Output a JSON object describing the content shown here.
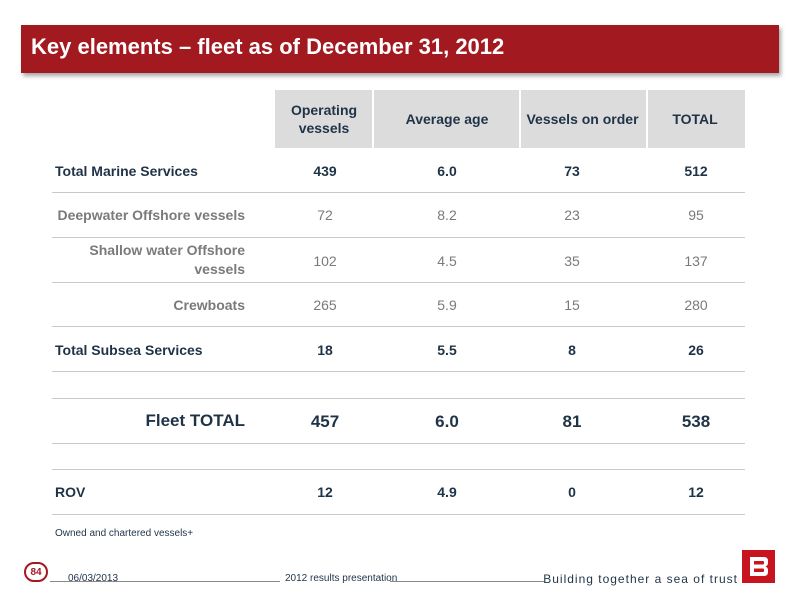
{
  "title": "Key elements – fleet as of December 31, 2012",
  "columns": [
    "Operating vessels",
    "Average age",
    "Vessels on order",
    "TOTAL"
  ],
  "rows": [
    {
      "label": "Total Marine Services",
      "values": [
        "439",
        "6.0",
        "73",
        "512"
      ]
    },
    {
      "label": "Deepwater Offshore vessels",
      "values": [
        "72",
        "8.2",
        "23",
        "95"
      ]
    },
    {
      "label": "Shallow water Offshore vessels",
      "values": [
        "102",
        "4.5",
        "35",
        "137"
      ]
    },
    {
      "label": "Crewboats",
      "values": [
        "265",
        "5.9",
        "15",
        "280"
      ]
    },
    {
      "label": "Total Subsea Services",
      "values": [
        "18",
        "5.5",
        "8",
        "26"
      ]
    },
    {
      "label": "Fleet TOTAL",
      "values": [
        "457",
        "6.0",
        "81",
        "538"
      ]
    },
    {
      "label": "ROV",
      "values": [
        "12",
        "4.9",
        "0",
        "12"
      ]
    }
  ],
  "note": "Owned and chartered vessels+",
  "footer": {
    "page": "84",
    "date": "06/03/2013",
    "presentation": "2012 results presentation",
    "slogan": "Building together a sea of trust"
  },
  "colors": {
    "brand": "#a31920",
    "header_band": "#dcdcdc",
    "text": "#1f3347",
    "sub_text": "#7a7a7a"
  }
}
